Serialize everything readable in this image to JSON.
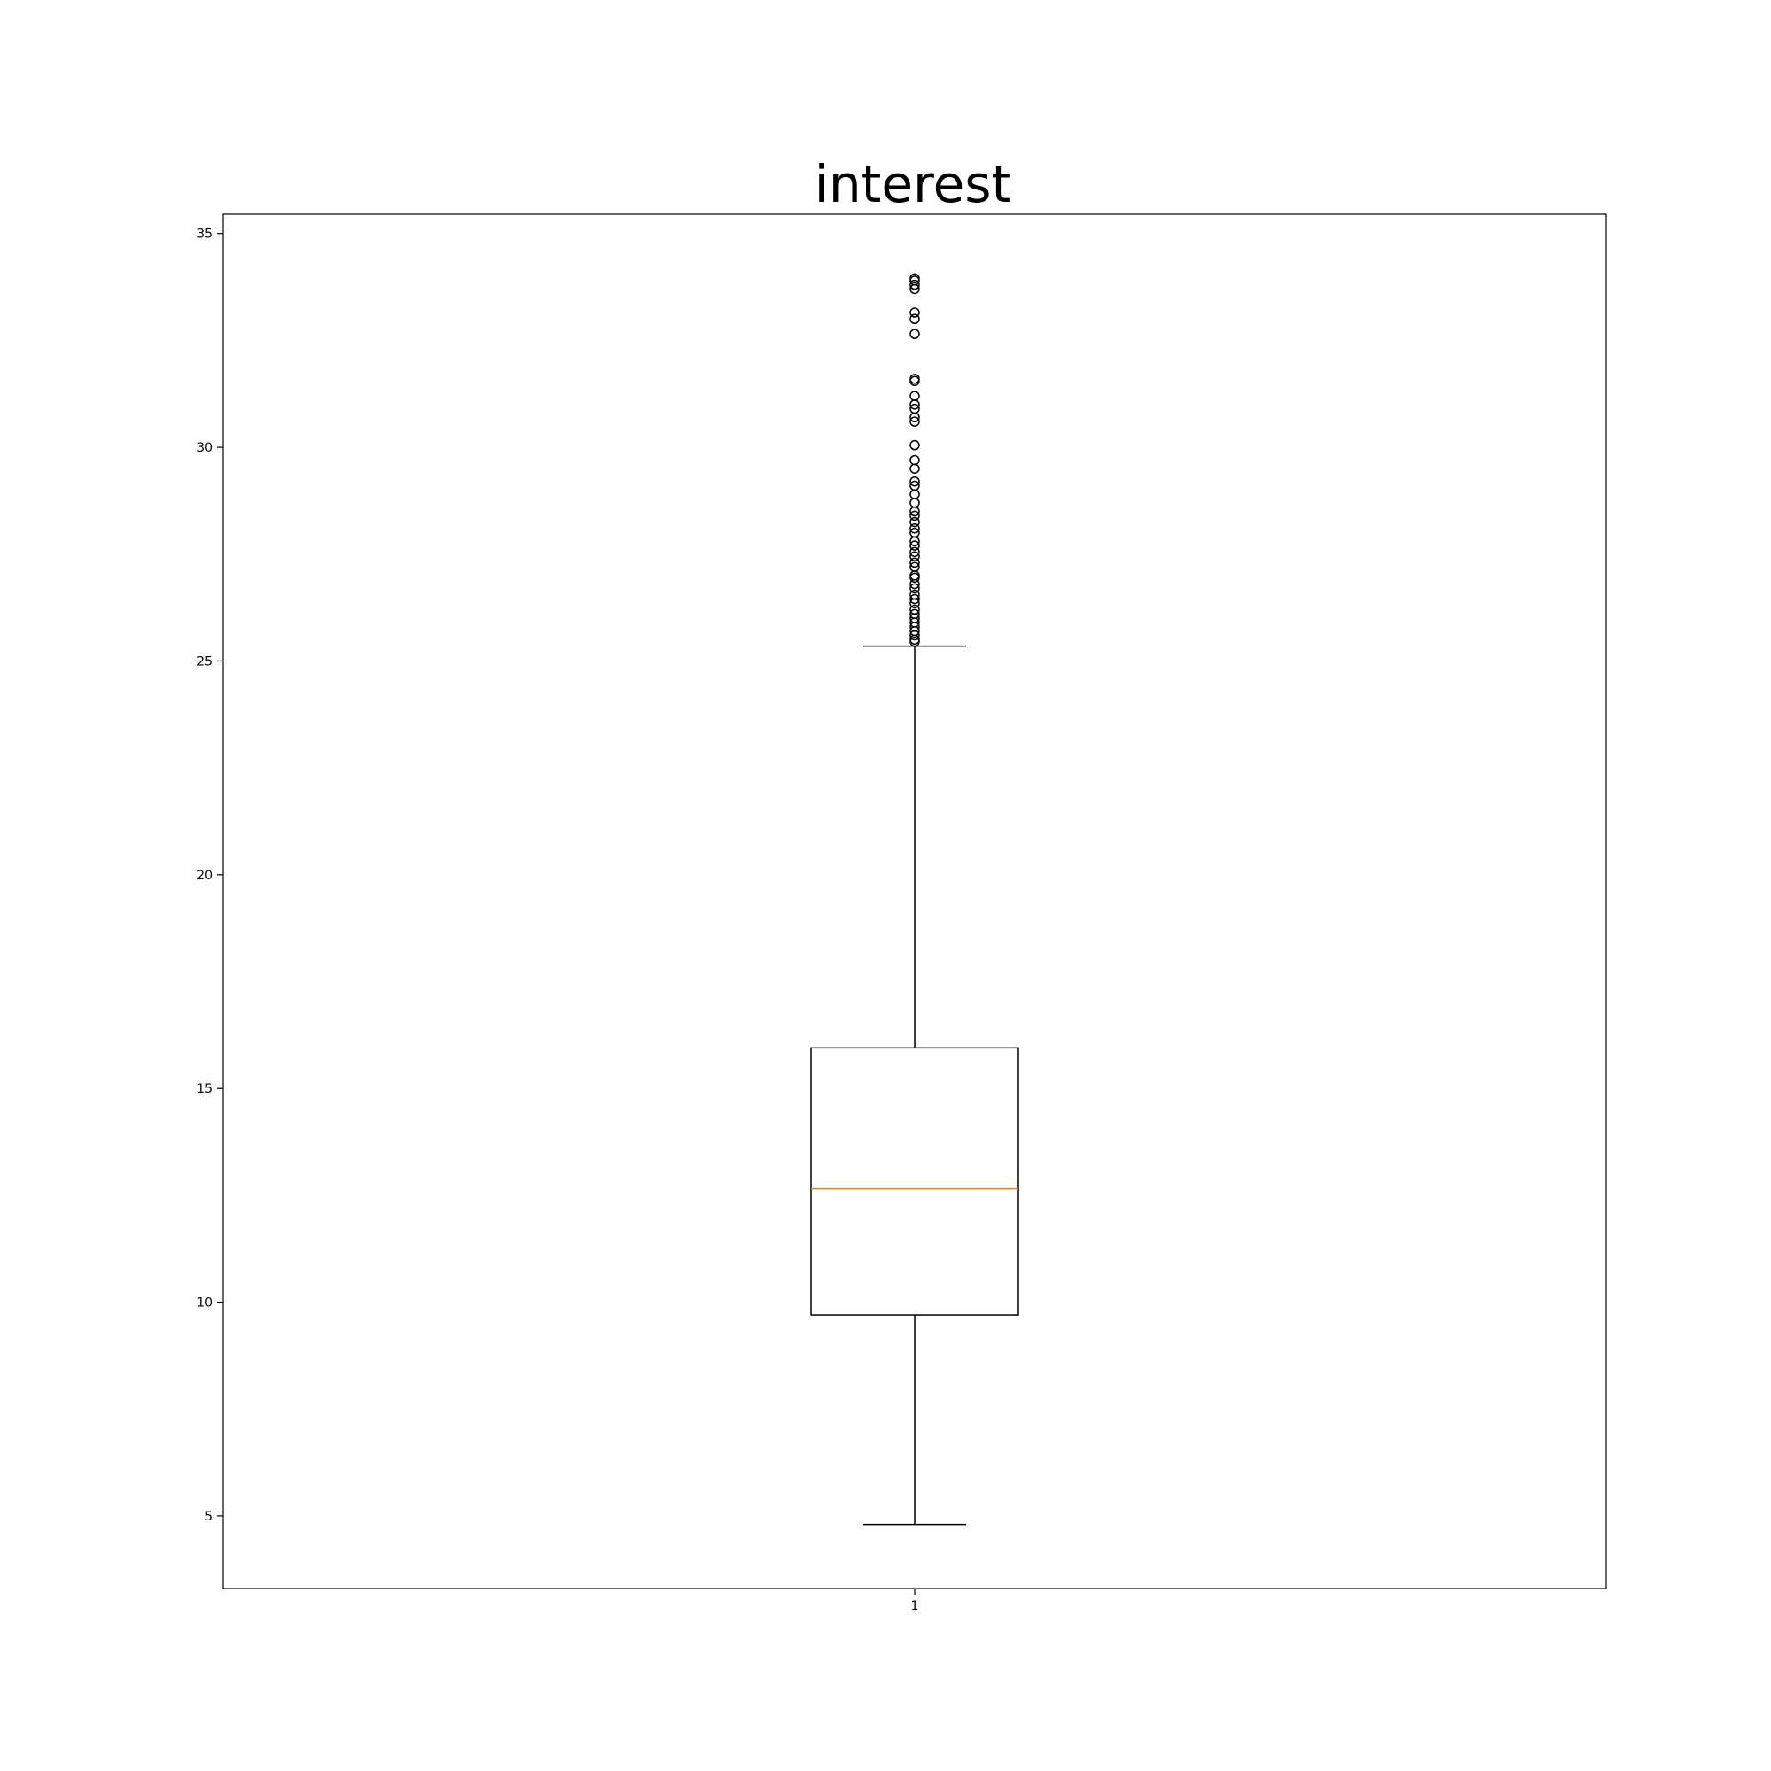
{
  "chart_data": {
    "type": "box",
    "title": "interest",
    "xlabel": "",
    "ylabel": "",
    "categories": [
      "1"
    ],
    "ylim": [
      3.3,
      35.45
    ],
    "yticks": [
      5,
      10,
      15,
      20,
      25,
      30,
      35
    ],
    "grid": false,
    "legend": "none",
    "colors": {
      "median": "#ff7f0e",
      "box": "#000000"
    },
    "box": {
      "whisker_low": 4.8,
      "q1": 9.7,
      "median": 12.65,
      "q3": 15.95,
      "whisker_high": 25.35
    },
    "outliers": [
      25.45,
      25.5,
      25.6,
      25.7,
      25.8,
      25.9,
      26.0,
      26.1,
      26.2,
      26.35,
      26.45,
      26.55,
      26.7,
      26.8,
      26.95,
      27.0,
      27.2,
      27.3,
      27.45,
      27.55,
      27.7,
      27.8,
      28.0,
      28.1,
      28.25,
      28.4,
      28.5,
      28.7,
      28.9,
      29.1,
      29.2,
      29.5,
      29.7,
      30.05,
      30.6,
      30.7,
      30.9,
      31.0,
      31.2,
      31.55,
      31.6,
      32.65,
      33.0,
      33.15,
      33.7,
      33.8,
      33.9,
      33.95
    ]
  }
}
